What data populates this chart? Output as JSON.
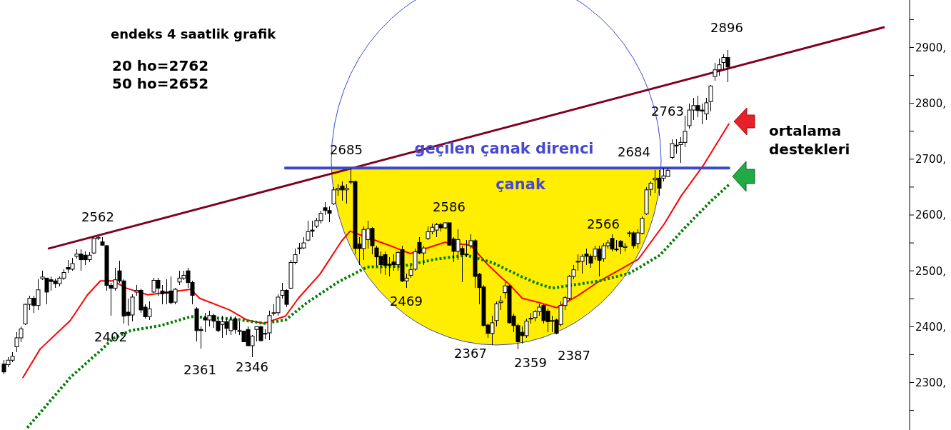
{
  "chart_data": {
    "type": "candlestick",
    "title": "endeks 4 saatlik grafik",
    "categories": [
      null,
      null,
      null,
      null,
      null,
      null,
      null,
      null,
      null,
      null,
      null,
      null,
      null,
      null,
      null,
      null,
      null,
      null,
      null,
      null,
      null,
      null,
      null,
      null,
      null,
      null,
      null,
      null,
      null,
      null,
      null,
      null,
      null,
      null,
      null,
      null,
      null,
      null,
      null,
      null,
      null,
      null,
      null,
      null,
      null,
      null,
      null,
      null,
      null,
      null,
      null,
      null,
      null,
      null,
      null,
      null,
      null,
      null,
      null,
      null,
      null,
      null,
      null,
      null,
      null,
      null,
      null,
      null,
      null,
      null,
      null,
      null,
      null,
      null,
      null,
      null,
      null,
      null,
      null,
      null,
      null,
      null,
      null,
      null,
      null,
      null,
      null,
      null,
      null,
      null,
      null,
      null,
      null,
      null,
      null,
      null,
      null,
      null,
      null,
      null,
      null,
      null,
      null,
      null,
      null,
      null,
      null,
      null,
      null,
      null,
      null,
      null,
      null,
      null,
      null,
      null,
      null,
      null,
      null,
      null,
      null,
      null,
      null,
      null,
      null,
      null,
      null,
      null,
      null,
      null,
      null,
      null,
      null,
      null,
      null,
      null,
      null,
      null,
      null,
      null,
      null,
      null,
      null,
      null,
      null,
      null,
      null,
      null,
      null,
      null,
      null,
      null,
      null,
      null,
      null,
      null,
      null,
      null,
      null,
      null,
      null,
      null,
      null,
      null,
      null,
      null,
      null,
      null,
      null,
      null,
      null,
      null,
      null,
      null,
      null,
      null,
      null,
      null,
      null,
      null,
      null,
      null,
      null,
      null,
      null,
      null,
      null,
      null,
      null,
      null,
      null,
      null,
      null,
      null,
      null,
      null,
      null,
      null,
      null,
      null,
      null,
      null,
      null,
      null,
      null,
      null,
      null,
      null,
      null,
      null,
      null,
      null
    ],
    "ohlc": [
      [
        2333,
        2340,
        2315,
        2319
      ],
      [
        2332,
        2345,
        2328,
        2340
      ],
      [
        2340,
        2355,
        2336,
        2347
      ],
      [
        2364,
        2390,
        2355,
        2380
      ],
      [
        2380,
        2400,
        2372,
        2396
      ],
      [
        2405,
        2442,
        2403,
        2440
      ],
      [
        2440,
        2455,
        2430,
        2451
      ],
      [
        2451,
        2455,
        2425,
        2438
      ],
      [
        2438,
        2485,
        2430,
        2466
      ],
      [
        2486,
        2500,
        2483,
        2489
      ],
      [
        2487,
        2487,
        2440,
        2462
      ],
      [
        2484,
        2490,
        2465,
        2481
      ],
      [
        2482,
        2486,
        2470,
        2477
      ],
      [
        2477,
        2490,
        2472,
        2487
      ],
      [
        2487,
        2503,
        2484,
        2497
      ],
      [
        2506,
        2520,
        2497,
        2503
      ],
      [
        2503,
        2523,
        2500,
        2513
      ],
      [
        2526,
        2538,
        2522,
        2530
      ],
      [
        2530,
        2538,
        2500,
        2520
      ],
      [
        2528,
        2535,
        2510,
        2520
      ],
      [
        2520,
        2533,
        2515,
        2528
      ],
      [
        2532,
        2560,
        2530,
        2558
      ],
      [
        2558,
        2562,
        2555,
        2560
      ],
      [
        2552,
        2560,
        2545,
        2546
      ],
      [
        2545,
        2546,
        2465,
        2474
      ],
      [
        2474,
        2478,
        2420,
        2469
      ],
      [
        2469,
        2505,
        2465,
        2484
      ],
      [
        2500,
        2518,
        2478,
        2482
      ],
      [
        2482,
        2485,
        2405,
        2419
      ],
      [
        2426,
        2450,
        2402,
        2420
      ],
      [
        2421,
        2458,
        2410,
        2453
      ],
      [
        2462,
        2475,
        2455,
        2465
      ],
      [
        2465,
        2468,
        2425,
        2430
      ],
      [
        2435,
        2440,
        2415,
        2418
      ],
      [
        2418,
        2445,
        2412,
        2432
      ],
      [
        2462,
        2487,
        2460,
        2483
      ],
      [
        2483,
        2487,
        2455,
        2469
      ],
      [
        2464,
        2475,
        2440,
        2459
      ],
      [
        2462,
        2485,
        2440,
        2460
      ],
      [
        2464,
        2490,
        2440,
        2443
      ],
      [
        2444,
        2470,
        2440,
        2467
      ],
      [
        2480,
        2500,
        2475,
        2487
      ],
      [
        2487,
        2500,
        2483,
        2492
      ],
      [
        2500,
        2505,
        2470,
        2479
      ],
      [
        2479,
        2482,
        2440,
        2456
      ],
      [
        2432,
        2435,
        2373,
        2393
      ],
      [
        2395,
        2400,
        2361,
        2393
      ],
      [
        2416,
        2425,
        2390,
        2412
      ],
      [
        2412,
        2428,
        2400,
        2420
      ],
      [
        2420,
        2423,
        2398,
        2410
      ],
      [
        2410,
        2415,
        2390,
        2393
      ],
      [
        2404,
        2420,
        2380,
        2409
      ],
      [
        2409,
        2415,
        2385,
        2397
      ],
      [
        2393,
        2420,
        2385,
        2412
      ],
      [
        2414,
        2418,
        2388,
        2395
      ],
      [
        2393,
        2410,
        2385,
        2392
      ],
      [
        2392,
        2393,
        2372,
        2373
      ],
      [
        2395,
        2400,
        2365,
        2366
      ],
      [
        2366,
        2385,
        2346,
        2383
      ],
      [
        2395,
        2400,
        2374,
        2400
      ],
      [
        2400,
        2402,
        2373,
        2375
      ],
      [
        2388,
        2395,
        2377,
        2388
      ],
      [
        2389,
        2428,
        2376,
        2420
      ],
      [
        2424,
        2440,
        2420,
        2425
      ],
      [
        2425,
        2458,
        2420,
        2453
      ],
      [
        2456,
        2478,
        2450,
        2465
      ],
      [
        2465,
        2467,
        2435,
        2440
      ],
      [
        2469,
        2520,
        2467,
        2515
      ],
      [
        2515,
        2540,
        2512,
        2529
      ],
      [
        2540,
        2550,
        2530,
        2541
      ],
      [
        2541,
        2560,
        2538,
        2550
      ],
      [
        2555,
        2590,
        2553,
        2570
      ],
      [
        2573,
        2590,
        2560,
        2571
      ],
      [
        2580,
        2595,
        2577,
        2590
      ],
      [
        2590,
        2608,
        2585,
        2603
      ],
      [
        2613,
        2623,
        2600,
        2608
      ],
      [
        2608,
        2615,
        2587,
        2603
      ],
      [
        2620,
        2650,
        2618,
        2645
      ],
      [
        2645,
        2655,
        2635,
        2648
      ],
      [
        2652,
        2660,
        2625,
        2645
      ],
      [
        2645,
        2655,
        2620,
        2648
      ],
      [
        2660,
        2685,
        2655,
        2660
      ],
      [
        2660,
        2662,
        2530,
        2540
      ],
      [
        2548,
        2560,
        2510,
        2540
      ],
      [
        2540,
        2580,
        2520,
        2574
      ],
      [
        2556,
        2590,
        2540,
        2575
      ],
      [
        2576,
        2578,
        2530,
        2545
      ],
      [
        2541,
        2545,
        2508,
        2525
      ],
      [
        2526,
        2535,
        2495,
        2511
      ],
      [
        2529,
        2535,
        2492,
        2510
      ],
      [
        2512,
        2525,
        2490,
        2510
      ],
      [
        2516,
        2530,
        2500,
        2511
      ],
      [
        2511,
        2535,
        2500,
        2533
      ],
      [
        2538,
        2545,
        2480,
        2482
      ],
      [
        2482,
        2495,
        2469,
        2487
      ],
      [
        2492,
        2510,
        2488,
        2502
      ],
      [
        2503,
        2540,
        2500,
        2534
      ],
      [
        2551,
        2560,
        2530,
        2532
      ],
      [
        2532,
        2545,
        2510,
        2541
      ],
      [
        2558,
        2580,
        2555,
        2570
      ],
      [
        2570,
        2585,
        2565,
        2578
      ],
      [
        2573,
        2586,
        2560,
        2583
      ],
      [
        2583,
        2586,
        2570,
        2577
      ],
      [
        2577,
        2586,
        2575,
        2586
      ],
      [
        2586,
        2586,
        2545,
        2546
      ],
      [
        2557,
        2560,
        2515,
        2535
      ],
      [
        2535,
        2575,
        2520,
        2556
      ],
      [
        2540,
        2545,
        2480,
        2529
      ],
      [
        2530,
        2555,
        2525,
        2530
      ],
      [
        2545,
        2565,
        2540,
        2554
      ],
      [
        2554,
        2556,
        2470,
        2490
      ],
      [
        2494,
        2496,
        2440,
        2470
      ],
      [
        2471,
        2475,
        2400,
        2402
      ],
      [
        2403,
        2405,
        2380,
        2388
      ],
      [
        2388,
        2420,
        2367,
        2407
      ],
      [
        2411,
        2445,
        2400,
        2441
      ],
      [
        2443,
        2455,
        2430,
        2446
      ],
      [
        2461,
        2480,
        2450,
        2473
      ],
      [
        2473,
        2475,
        2405,
        2407
      ],
      [
        2419,
        2423,
        2390,
        2402
      ],
      [
        2402,
        2405,
        2359,
        2373
      ],
      [
        2390,
        2400,
        2370,
        2384
      ],
      [
        2384,
        2415,
        2380,
        2410
      ],
      [
        2415,
        2425,
        2405,
        2415
      ],
      [
        2416,
        2430,
        2410,
        2427
      ],
      [
        2427,
        2440,
        2420,
        2435
      ],
      [
        2438,
        2440,
        2405,
        2411
      ],
      [
        2428,
        2432,
        2390,
        2409
      ],
      [
        2411,
        2420,
        2390,
        2411
      ],
      [
        2412,
        2415,
        2387,
        2388
      ],
      [
        2404,
        2445,
        2400,
        2438
      ],
      [
        2438,
        2455,
        2430,
        2452
      ],
      [
        2451,
        2492,
        2448,
        2490
      ],
      [
        2490,
        2510,
        2485,
        2502
      ],
      [
        2517,
        2530,
        2500,
        2517
      ],
      [
        2517,
        2530,
        2495,
        2526
      ],
      [
        2530,
        2540,
        2510,
        2526
      ],
      [
        2526,
        2530,
        2505,
        2514
      ],
      [
        2526,
        2545,
        2520,
        2539
      ],
      [
        2539,
        2545,
        2490,
        2519
      ],
      [
        2522,
        2550,
        2515,
        2545
      ],
      [
        2545,
        2555,
        2540,
        2550
      ],
      [
        2558,
        2566,
        2535,
        2539
      ],
      [
        2539,
        2555,
        2535,
        2539
      ],
      [
        2553,
        2555,
        2530,
        2543
      ],
      [
        2542,
        2550,
        2535,
        2544
      ],
      [
        2568,
        2572,
        2560,
        2568
      ],
      [
        2568,
        2570,
        2540,
        2545
      ],
      [
        2549,
        2575,
        2540,
        2568
      ],
      [
        2567,
        2597,
        2565,
        2594
      ],
      [
        2602,
        2650,
        2600,
        2645
      ],
      [
        2646,
        2660,
        2635,
        2657
      ],
      [
        2663,
        2680,
        2640,
        2666
      ],
      [
        2666,
        2680,
        2635,
        2648
      ],
      [
        2666,
        2684,
        2660,
        2670
      ],
      [
        2669,
        2684,
        2668,
        2680
      ],
      [
        2703,
        2735,
        2700,
        2728
      ],
      [
        2725,
        2735,
        2710,
        2724
      ],
      [
        2726,
        2740,
        2693,
        2730
      ],
      [
        2730,
        2778,
        2722,
        2750
      ],
      [
        2760,
        2800,
        2755,
        2788
      ],
      [
        2788,
        2810,
        2770,
        2796
      ],
      [
        2796,
        2814,
        2775,
        2787
      ],
      [
        2788,
        2800,
        2763,
        2786
      ],
      [
        2781,
        2810,
        2770,
        2801
      ],
      [
        2803,
        2833,
        2785,
        2831
      ],
      [
        2848,
        2872,
        2840,
        2860
      ],
      [
        2860,
        2880,
        2850,
        2869
      ],
      [
        2873,
        2888,
        2860,
        2882
      ],
      [
        2882,
        2896,
        2838,
        2865
      ],
      null,
      null,
      null,
      null,
      null,
      null,
      null,
      null,
      null,
      null,
      null,
      null,
      null,
      null,
      null,
      null,
      null,
      null,
      null,
      null,
      null,
      null,
      null,
      null,
      null,
      null,
      null,
      null,
      null,
      null,
      null,
      null,
      null,
      null,
      null,
      null,
      null,
      null,
      null,
      null,
      null,
      null
    ],
    "series": [
      {
        "type": "line",
        "color": "#ff0000",
        "values": [
          null,
          null,
          null,
          null,
          null,
          2309,
          null,
          null,
          null,
          2360,
          null,
          null,
          null,
          null,
          null,
          null,
          2411,
          null,
          null,
          null,
          2457,
          null,
          null,
          2482,
          null,
          null,
          2482,
          null,
          null,
          2469,
          null,
          null,
          null,
          null,
          2457,
          null,
          null,
          null,
          null,
          null,
          null,
          null,
          null,
          null,
          2467,
          null,
          2451,
          null,
          null,
          null,
          null,
          null,
          null,
          2430,
          null,
          null,
          null,
          2412,
          null,
          null,
          null,
          2406,
          null,
          null,
          null,
          null,
          2419,
          null,
          null,
          2451,
          null,
          null,
          null,
          null,
          2494,
          null,
          null,
          null,
          null,
          2553,
          null,
          2571,
          null,
          null,
          null,
          null,
          null,
          null,
          null,
          null,
          null,
          2543,
          null,
          null,
          null,
          2531,
          null,
          null,
          null,
          null,
          null,
          null,
          null,
          2551,
          null,
          null,
          null,
          null,
          null,
          2546,
          null,
          null,
          null,
          2511,
          null,
          null,
          2489,
          null,
          2476,
          null,
          null,
          2451,
          null,
          null,
          null,
          2443,
          null,
          null,
          null,
          2434,
          null,
          null,
          null,
          null,
          2456,
          null,
          null,
          null,
          null,
          2482,
          null,
          null,
          null,
          null,
          null,
          null,
          null,
          null,
          2521,
          null,
          null,
          null,
          null,
          null,
          2584,
          null,
          null,
          null,
          2635,
          null,
          null,
          null,
          null,
          2688,
          null,
          null,
          null,
          null,
          null,
          2763,
          null,
          null,
          null,
          null,
          null,
          null,
          null,
          null,
          null,
          null,
          null,
          null,
          null,
          null,
          null,
          null,
          null,
          null,
          null,
          null,
          null,
          null,
          null,
          null,
          null,
          null,
          null,
          null,
          null,
          null,
          null,
          null,
          null,
          null,
          null,
          null,
          null,
          null,
          null,
          null,
          null,
          null
        ]
      },
      {
        "type": "line",
        "color": "#008000",
        "line_style": "dotted",
        "values": [
          null,
          null,
          null,
          null,
          null,
          null,
          2219,
          null,
          null,
          null,
          null,
          null,
          null,
          null,
          null,
          null,
          2309,
          null,
          2323,
          null,
          null,
          null,
          null,
          2357,
          null,
          null,
          2379,
          null,
          null,
          null,
          2393,
          null,
          null,
          null,
          null,
          null,
          null,
          2402,
          null,
          null,
          null,
          null,
          null,
          null,
          2418,
          null,
          null,
          null,
          null,
          null,
          null,
          null,
          null,
          null,
          2414,
          null,
          null,
          null,
          null,
          null,
          null,
          2406,
          null,
          null,
          null,
          null,
          2412,
          null,
          null,
          null,
          null,
          2443,
          null,
          null,
          null,
          null,
          null,
          null,
          2479,
          null,
          null,
          null,
          null,
          null,
          null,
          2507,
          null,
          null,
          null,
          null,
          null,
          null,
          null,
          2508,
          null,
          null,
          null,
          null,
          null,
          null,
          null,
          2521,
          null,
          null,
          null,
          null,
          null,
          null,
          2528,
          null,
          null,
          null,
          null,
          null,
          2515,
          null,
          null,
          null,
          null,
          null,
          null,
          2489,
          null,
          null,
          null,
          2476,
          null,
          null,
          2469,
          null,
          null,
          null,
          null,
          null,
          null,
          null,
          null,
          null,
          null,
          2482,
          null,
          null,
          null,
          null,
          null,
          null,
          2496,
          null,
          null,
          null,
          null,
          null,
          null,
          2528,
          null,
          null,
          null,
          null,
          null,
          2579,
          null,
          null,
          null,
          null,
          null,
          2626,
          null,
          null,
          null,
          2654,
          null,
          null,
          null,
          null,
          null,
          null,
          null,
          null,
          null,
          null,
          null,
          null,
          null,
          null,
          null,
          null,
          null,
          null,
          null,
          null,
          null,
          null,
          null,
          null,
          null,
          null,
          null,
          null,
          null,
          null,
          null,
          null,
          null,
          null,
          null,
          null,
          null,
          null,
          null,
          null,
          null,
          null
        ]
      },
      {
        "type": "line",
        "color": "#800020",
        "values": [
          null,
          null,
          null,
          null,
          null,
          null,
          null,
          null,
          null,
          null,
          null,
          2540,
          null,
          null,
          null,
          null,
          null,
          null,
          null,
          null,
          null,
          null,
          null,
          null,
          null,
          null,
          null,
          null,
          null,
          null,
          null,
          null,
          null,
          null,
          null,
          null,
          null,
          null,
          null,
          null,
          null,
          null,
          null,
          null,
          null,
          null,
          null,
          null,
          null,
          null,
          null,
          null,
          null,
          null,
          null,
          null,
          null,
          null,
          null,
          null,
          null,
          null,
          null,
          null,
          null,
          null,
          null,
          null,
          null,
          null,
          null,
          null,
          null,
          null,
          null,
          null,
          null,
          null,
          null,
          null,
          null,
          null,
          null,
          null,
          null,
          null,
          null,
          null,
          null,
          null,
          null,
          null,
          null,
          null,
          null,
          null,
          null,
          null,
          null,
          null,
          null,
          null,
          null,
          null,
          null,
          null,
          null,
          null,
          null,
          null,
          null,
          null,
          null,
          null,
          null,
          null,
          null,
          null,
          null,
          null,
          null,
          null,
          null,
          null,
          null,
          null,
          null,
          null,
          null,
          null,
          null,
          null,
          null,
          null,
          null,
          null,
          null,
          null,
          null,
          null,
          null,
          null,
          null,
          null,
          null,
          null,
          null,
          null,
          null,
          null,
          null,
          null,
          null,
          null,
          null,
          null,
          null,
          null,
          null,
          null,
          null,
          null,
          null,
          null,
          null,
          null,
          null,
          null,
          null,
          null,
          null,
          null,
          null,
          null,
          null,
          null,
          null,
          null,
          null,
          null,
          null,
          null,
          null,
          null,
          null,
          null,
          null,
          null,
          null,
          null,
          null,
          null,
          null,
          null,
          null,
          null,
          null,
          null,
          null,
          null,
          null,
          null,
          null,
          null,
          null,
          2936,
          null,
          null,
          null,
          null,
          null,
          null
        ]
      },
      {
        "type": "line",
        "color": "#4048c8",
        "values": [
          null,
          null,
          null,
          null,
          null,
          null,
          null,
          null,
          null,
          null,
          null,
          null,
          null,
          null,
          null,
          null,
          null,
          null,
          null,
          null,
          null,
          null,
          null,
          null,
          null,
          null,
          null,
          null,
          null,
          null,
          null,
          null,
          null,
          null,
          null,
          null,
          null,
          null,
          null,
          null,
          null,
          null,
          null,
          null,
          null,
          null,
          null,
          null,
          null,
          null,
          null,
          null,
          null,
          null,
          null,
          null,
          null,
          null,
          null,
          null,
          null,
          null,
          null,
          null,
          null,
          null,
          2684,
          null,
          null,
          null,
          null,
          null,
          null,
          null,
          null,
          null,
          null,
          null,
          null,
          null,
          null,
          null,
          null,
          null,
          null,
          null,
          null,
          null,
          null,
          null,
          null,
          null,
          null,
          null,
          null,
          null,
          null,
          null,
          null,
          null,
          null,
          null,
          null,
          null,
          null,
          null,
          null,
          null,
          null,
          null,
          null,
          null,
          null,
          null,
          null,
          null,
          null,
          null,
          null,
          null,
          null,
          null,
          null,
          null,
          null,
          null,
          null,
          null,
          null,
          null,
          null,
          null,
          null,
          null,
          null,
          null,
          null,
          null,
          null,
          null,
          null,
          null,
          null,
          null,
          null,
          null,
          null,
          null,
          null,
          null,
          null,
          null,
          null,
          null,
          null,
          null,
          null,
          null,
          null,
          null,
          null,
          null,
          null,
          null,
          null,
          null,
          null,
          null,
          null,
          2684,
          null,
          null,
          null,
          null,
          null,
          null,
          null,
          null,
          null,
          null,
          null,
          null,
          null,
          null,
          null,
          null,
          null,
          null,
          null,
          null,
          null,
          null,
          null,
          null,
          null,
          null,
          null,
          null,
          null,
          null,
          null,
          null,
          null,
          null,
          null,
          null,
          null,
          null,
          null,
          null,
          null,
          null
        ]
      }
    ],
    "ylim": [
      2215,
      2985
    ],
    "yticks": [
      {
        "value": 2250,
        "label": null
      },
      {
        "value": 2300,
        "label": "2300,"
      },
      {
        "value": 2350,
        "label": null
      },
      {
        "value": 2400,
        "label": "2400,"
      },
      {
        "value": 2450,
        "label": null
      },
      {
        "value": 2500,
        "label": "2500,"
      },
      {
        "value": 2550,
        "label": null
      },
      {
        "value": 2600,
        "label": "2600,"
      },
      {
        "value": 2650,
        "label": null
      },
      {
        "value": 2700,
        "label": "2700,"
      },
      {
        "value": 2750,
        "label": null
      },
      {
        "value": 2800,
        "label": "2800,"
      },
      {
        "value": 2850,
        "label": null
      },
      {
        "value": 2900,
        "label": "2900,"
      },
      {
        "value": 2950,
        "label": null
      }
    ],
    "tick_labels": "y",
    "grid": false,
    "legend": false,
    "annotations": [
      "20 ho=2762",
      "50 ho=2652",
      "geçilen çanak direnci",
      "çanak",
      "ortalama destekleri",
      "2562",
      "2402",
      "2361",
      "2346",
      "2685",
      "2469",
      "2586",
      "2367",
      "2359",
      "2387",
      "2566",
      "2684",
      "2763",
      "2896"
    ]
  }
}
